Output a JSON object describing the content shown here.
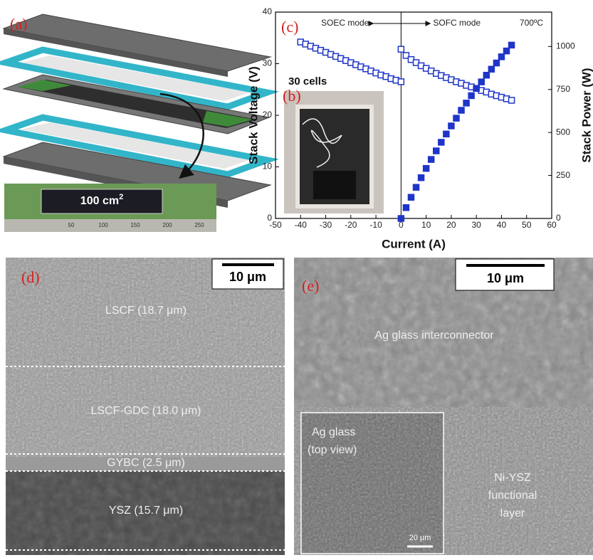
{
  "panel_labels": [
    "(a)",
    "(b)",
    "(c)",
    "(d)",
    "(e)"
  ],
  "panel_a": {
    "cell_area": "100 cm",
    "cell_area_superscript": "2",
    "ruler_labels": [
      "50",
      "100",
      "150",
      "200",
      "250"
    ]
  },
  "panel_b": {
    "caption": "30 cells"
  },
  "chart_data": {
    "type": "scatter",
    "x_label": "Current (A)",
    "y_label": "Stack Voltage (V)",
    "y2_label": "Stack Power (W)",
    "annotations": [
      "SOEC mode",
      "SOFC mode",
      "700ºC"
    ],
    "xlim": [
      -50,
      60
    ],
    "xticks": [
      -50,
      -40,
      -30,
      -20,
      -10,
      0,
      10,
      20,
      30,
      40,
      50,
      60
    ],
    "ylim": [
      0,
      40
    ],
    "yticks": [
      0,
      10,
      20,
      30,
      40
    ],
    "y2lim": [
      0,
      1200
    ],
    "y2ticks": [
      0,
      250,
      500,
      750,
      1000
    ],
    "series": [
      {
        "color": "#1f35c8",
        "marker": "open-square",
        "x": [
          -40,
          -38,
          -36,
          -34,
          -32,
          -30,
          -28,
          -26,
          -24,
          -22,
          -20,
          -18,
          -16,
          -14,
          -12,
          -10,
          -8,
          -6,
          -4,
          -2,
          0
        ],
        "values": [
          34.2,
          33.8,
          33.4,
          33.0,
          32.6,
          32.2,
          31.8,
          31.4,
          31.0,
          30.6,
          30.2,
          29.8,
          29.4,
          29.0,
          28.6,
          28.2,
          27.8,
          27.5,
          27.1,
          26.8,
          26.5
        ]
      },
      {
        "color": "#1f35c8",
        "marker": "open-square",
        "x": [
          0,
          2,
          4,
          6,
          8,
          10,
          12,
          14,
          16,
          18,
          20,
          22,
          24,
          26,
          28,
          30,
          32,
          34,
          36,
          38,
          40,
          42,
          44
        ],
        "values": [
          32.8,
          31.6,
          30.8,
          30.2,
          29.6,
          29.1,
          28.6,
          28.1,
          27.7,
          27.3,
          26.9,
          26.5,
          26.2,
          25.8,
          25.5,
          25.2,
          24.8,
          24.5,
          24.1,
          23.8,
          23.5,
          23.2,
          22.9
        ]
      },
      {
        "color": "#1f35c8",
        "marker": "filled-square",
        "axis": "y2",
        "x": [
          0,
          2,
          4,
          6,
          8,
          10,
          12,
          14,
          16,
          18,
          20,
          22,
          24,
          26,
          28,
          30,
          32,
          34,
          36,
          38,
          40,
          42,
          44
        ],
        "values": [
          0,
          63,
          123,
          181,
          237,
          291,
          343,
          393,
          443,
          491,
          538,
          583,
          629,
          671,
          714,
          756,
          794,
          833,
          868,
          904,
          940,
          974,
          1008
        ]
      }
    ]
  },
  "panel_d": {
    "scale_bar": "10 μm",
    "layers": [
      "LSCF (18.7 μm)",
      "LSCF-GDC (18.0 μm)",
      "GYBC (2.5 μm)",
      "YSZ (15.7 μm)"
    ]
  },
  "panel_e": {
    "scale_bar": "10 μm",
    "interconnector": "Ag glass interconnector",
    "inset_lines": [
      "Ag glass",
      "(top view)"
    ],
    "inset_scale_bar": "20 μm",
    "layer_lines": [
      "Ni-YSZ",
      "functional",
      "layer"
    ]
  }
}
